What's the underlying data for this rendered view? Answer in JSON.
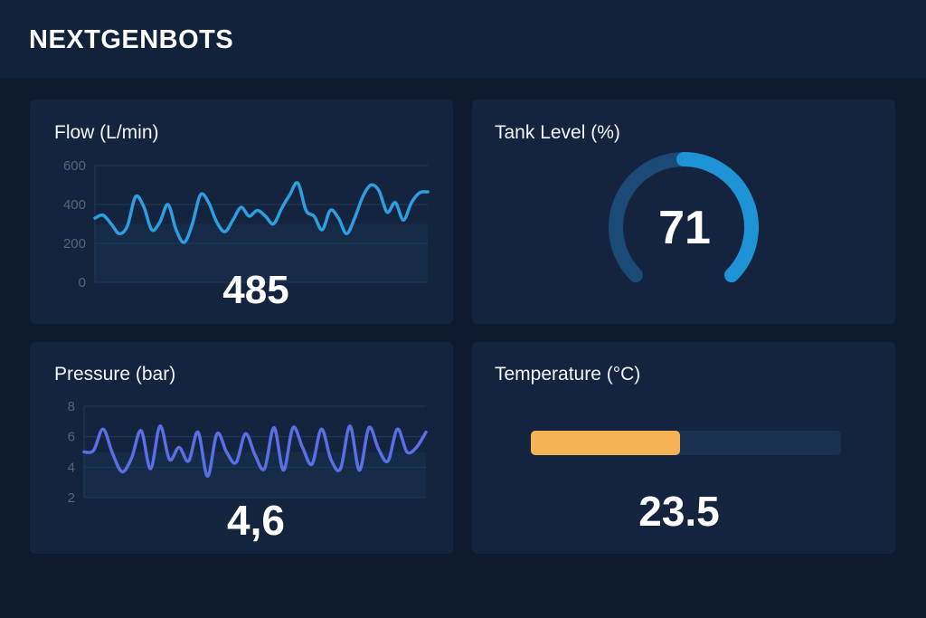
{
  "app": {
    "brand": "NEXTGENBOTS"
  },
  "colors": {
    "background": "#0e1a2e",
    "card": "#14243e",
    "flow_line": "#2d9fe0",
    "pressure_line": "#5a6ee6",
    "gauge_fill": "#1e93d6",
    "gauge_track": "#1b4a77",
    "temperature_bar": "#f5b356",
    "temperature_track": "#1b3150"
  },
  "flow": {
    "title": "Flow (L/min)",
    "value": "485",
    "chart_data": {
      "type": "line",
      "ylim": [
        0,
        600
      ],
      "y_ticks": [
        "600",
        "400",
        "200",
        "0"
      ],
      "grid": true,
      "series": [
        {
          "values": [
            330,
            345,
            300,
            250,
            290,
            440,
            390,
            270,
            310,
            400,
            270,
            205,
            300,
            450,
            410,
            310,
            260,
            320,
            385,
            340,
            370,
            340,
            300,
            380,
            450,
            510,
            370,
            340,
            270,
            370,
            330,
            250,
            330,
            440,
            500,
            470,
            360,
            410,
            320,
            410,
            460,
            465
          ]
        }
      ]
    }
  },
  "tank": {
    "title": "Tank Level (%)",
    "value": "71",
    "level_percent": 71
  },
  "pressure": {
    "title": "Pressure (bar)",
    "value": "4,6",
    "chart_data": {
      "type": "line",
      "ylim": [
        2,
        8
      ],
      "y_ticks": [
        "8",
        "6",
        "4",
        "2"
      ],
      "grid": true,
      "series": [
        {
          "values": [
            5.0,
            5.1,
            6.5,
            4.9,
            3.7,
            4.6,
            6.4,
            3.9,
            6.7,
            4.5,
            5.3,
            4.4,
            6.3,
            3.4,
            6.2,
            5.0,
            4.3,
            6.2,
            4.8,
            3.9,
            6.6,
            3.8,
            6.6,
            5.3,
            4.2,
            6.5,
            4.5,
            3.9,
            6.7,
            3.8,
            6.6,
            5.2,
            4.4,
            6.5,
            5.0,
            5.3,
            6.3
          ]
        }
      ]
    }
  },
  "temperature": {
    "title": "Temperature (°C)",
    "value": "23.5",
    "bar_fraction": 0.48
  }
}
